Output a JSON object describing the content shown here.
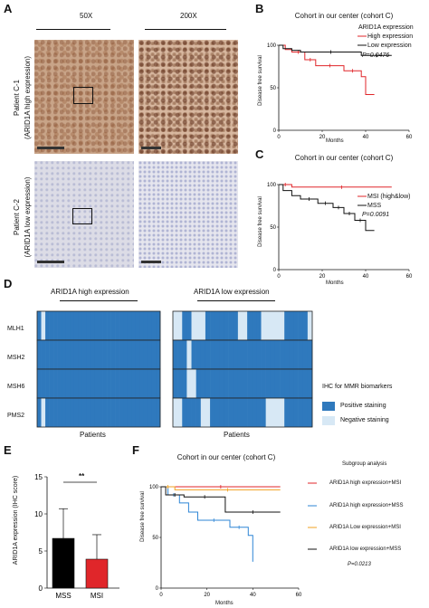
{
  "panelA": {
    "label": "A",
    "col_50x": "50X",
    "col_200x": "200X",
    "row1_title": "Patient C-1",
    "row1_sub": "(ARID1A high expression)",
    "row2_title": "Patient C-2",
    "row2_sub": "(ARID1A low expression)"
  },
  "panelB": {
    "label": "B",
    "title": "Cohort in our center (cohort C)",
    "legend_title": "ARID1A expression",
    "legend_high": "High expression",
    "legend_low": "Low expression",
    "pvalue": "P=0.0476",
    "ylabel": "Disease free survival",
    "xlabel": "Months",
    "colors": {
      "high": "#e0262a",
      "low": "#111111"
    }
  },
  "panelC": {
    "label": "C",
    "title": "Cohort in our center (cohort C)",
    "legend_msi": "MSI (high&low)",
    "legend_mss": "MSS",
    "pvalue": "P=0.0091",
    "ylabel": "Disease free survival",
    "xlabel": "Months",
    "colors": {
      "msi": "#e0262a",
      "mss": "#111111"
    }
  },
  "panelD": {
    "label": "D",
    "group_high": "ARID1A high expression",
    "group_low": "ARID1A low expression",
    "markers": [
      "MLH1",
      "MSH2",
      "MSH6",
      "PMS2"
    ],
    "xlabel_left": "Patients",
    "xlabel_right": "Patients",
    "legend_title": "IHC for MMR biomarkers",
    "legend_pos": "Positive staining",
    "legend_neg": "Negative staining",
    "colors": {
      "positive": "#2f79bd",
      "negative": "#d7e8f5"
    }
  },
  "panelE": {
    "label": "E",
    "ylabel": "ARID1A expression (IHC score)",
    "significance": "**"
  },
  "panelF": {
    "label": "F",
    "title": "Cohort in our center (cohort C)",
    "legend_title": "Subgroup analysis",
    "legend": [
      "ARID1A high expression+MSI",
      "ARID1A high expression+MSS",
      "ARID1A Low expression+MSI",
      "ARID1A low expression+MSS"
    ],
    "pvalue": "P=0.0213",
    "ylabel": "Disease free survival",
    "xlabel": "Months",
    "colors": [
      "#e0262a",
      "#2e86d6",
      "#f0a020",
      "#111111"
    ]
  },
  "chart_data": [
    {
      "panel": "B",
      "type": "line",
      "title": "Cohort in our center (cohort C)",
      "xlabel": "Months",
      "ylabel": "Disease free survival",
      "xlim": [
        0,
        60
      ],
      "ylim": [
        0,
        100
      ],
      "xticks": [
        0,
        20,
        40,
        60
      ],
      "yticks": [
        0,
        50,
        100
      ],
      "series": [
        {
          "name": "High expression",
          "step": true,
          "points": [
            [
              0,
              100
            ],
            [
              3,
              100
            ],
            [
              3,
              95
            ],
            [
              6,
              95
            ],
            [
              6,
              92
            ],
            [
              12,
              92
            ],
            [
              12,
              83
            ],
            [
              17,
              83
            ],
            [
              17,
              76
            ],
            [
              30,
              76
            ],
            [
              30,
              70
            ],
            [
              38,
              70
            ],
            [
              38,
              63
            ],
            [
              40,
              63
            ],
            [
              40,
              42
            ],
            [
              44,
              42
            ]
          ]
        },
        {
          "name": "Low expression",
          "step": true,
          "points": [
            [
              0,
              100
            ],
            [
              2,
              100
            ],
            [
              2,
              96
            ],
            [
              6,
              96
            ],
            [
              6,
              94
            ],
            [
              10,
              94
            ],
            [
              10,
              92
            ],
            [
              38,
              92
            ],
            [
              38,
              88
            ],
            [
              52,
              88
            ]
          ]
        }
      ]
    },
    {
      "panel": "C",
      "type": "line",
      "title": "Cohort in our center (cohort C)",
      "xlabel": "Months",
      "ylabel": "Disease free survival",
      "xlim": [
        0,
        60
      ],
      "ylim": [
        0,
        100
      ],
      "xticks": [
        0,
        20,
        40,
        60
      ],
      "yticks": [
        0,
        50,
        100
      ],
      "series": [
        {
          "name": "MSI (high&low)",
          "step": true,
          "points": [
            [
              0,
              100
            ],
            [
              6,
              100
            ],
            [
              6,
              97
            ],
            [
              52,
              97
            ]
          ]
        },
        {
          "name": "MSS",
          "step": true,
          "points": [
            [
              0,
              100
            ],
            [
              2,
              100
            ],
            [
              2,
              93
            ],
            [
              6,
              93
            ],
            [
              6,
              87
            ],
            [
              10,
              87
            ],
            [
              10,
              83
            ],
            [
              18,
              83
            ],
            [
              18,
              78
            ],
            [
              25,
              78
            ],
            [
              25,
              73
            ],
            [
              30,
              73
            ],
            [
              30,
              66
            ],
            [
              35,
              66
            ],
            [
              35,
              58
            ],
            [
              40,
              58
            ],
            [
              40,
              46
            ],
            [
              44,
              46
            ]
          ]
        }
      ]
    },
    {
      "panel": "D",
      "type": "heatmap",
      "rows": [
        "MLH1",
        "MSH2",
        "MSH6",
        "PMS2"
      ],
      "values": {
        "positive": "Positive staining",
        "negative": "Negative staining"
      },
      "high_group": [
        [
          1,
          0,
          1,
          1,
          1,
          1,
          1,
          1,
          1,
          1,
          1,
          1,
          1,
          1,
          1,
          1,
          1,
          1,
          1,
          1,
          1,
          1,
          1,
          1,
          1,
          1,
          1,
          1,
          1,
          1
        ],
        [
          1,
          1,
          1,
          1,
          1,
          1,
          1,
          1,
          1,
          1,
          1,
          1,
          1,
          1,
          1,
          1,
          1,
          1,
          1,
          1,
          1,
          1,
          1,
          1,
          1,
          1,
          1,
          1,
          1,
          1
        ],
        [
          1,
          1,
          1,
          1,
          1,
          1,
          1,
          1,
          1,
          1,
          1,
          1,
          1,
          1,
          1,
          1,
          1,
          1,
          1,
          1,
          1,
          1,
          1,
          1,
          1,
          1,
          1,
          1,
          1,
          1
        ],
        [
          1,
          0,
          1,
          1,
          1,
          1,
          1,
          1,
          1,
          1,
          1,
          1,
          1,
          1,
          1,
          1,
          1,
          1,
          1,
          1,
          1,
          1,
          1,
          1,
          1,
          1,
          1,
          1,
          1,
          1
        ]
      ],
      "low_group": [
        [
          0,
          0,
          1,
          1,
          0,
          0,
          0,
          1,
          1,
          1,
          1,
          1,
          1,
          1,
          0,
          0,
          1,
          1,
          1,
          0,
          0,
          0,
          0,
          0,
          1,
          1,
          1,
          1,
          1,
          0
        ],
        [
          1,
          1,
          1,
          0,
          1,
          1,
          1,
          1,
          1,
          1,
          1,
          1,
          1,
          1,
          1,
          1,
          1,
          1,
          1,
          1,
          1,
          1,
          1,
          1,
          1,
          1,
          1,
          1,
          1,
          1
        ],
        [
          1,
          1,
          1,
          0,
          0,
          1,
          1,
          1,
          1,
          1,
          1,
          1,
          1,
          1,
          1,
          1,
          1,
          1,
          1,
          1,
          1,
          1,
          1,
          1,
          1,
          1,
          1,
          1,
          1,
          1
        ],
        [
          0,
          0,
          1,
          1,
          1,
          1,
          0,
          0,
          1,
          1,
          1,
          1,
          1,
          1,
          1,
          1,
          1,
          1,
          1,
          1,
          0,
          0,
          0,
          0,
          1,
          1,
          1,
          1,
          1,
          1
        ]
      ]
    },
    {
      "panel": "E",
      "type": "bar",
      "categories": [
        "MSS",
        "MSI"
      ],
      "values": [
        6.7,
        3.9
      ],
      "errors": [
        4.0,
        3.3
      ],
      "ylabel": "ARID1A expression (IHC score)",
      "ylim": [
        0,
        15
      ],
      "yticks": [
        0,
        5,
        10,
        15
      ],
      "colors": [
        "#000000",
        "#e0262a"
      ]
    },
    {
      "panel": "F",
      "type": "line",
      "title": "Cohort in our center (cohort C)",
      "xlabel": "Months",
      "ylabel": "Disease free survival",
      "xlim": [
        0,
        60
      ],
      "ylim": [
        0,
        100
      ],
      "xticks": [
        0,
        20,
        40,
        60
      ],
      "yticks": [
        0,
        50,
        100
      ],
      "series": [
        {
          "name": "ARID1A high expression+MSI",
          "step": true,
          "points": [
            [
              0,
              100
            ],
            [
              52,
              100
            ]
          ]
        },
        {
          "name": "ARID1A high expression+MSS",
          "step": true,
          "points": [
            [
              0,
              100
            ],
            [
              3,
              100
            ],
            [
              3,
              92
            ],
            [
              8,
              92
            ],
            [
              8,
              84
            ],
            [
              12,
              84
            ],
            [
              12,
              75
            ],
            [
              16,
              75
            ],
            [
              16,
              67
            ],
            [
              30,
              67
            ],
            [
              30,
              60
            ],
            [
              38,
              60
            ],
            [
              38,
              52
            ],
            [
              40,
              52
            ],
            [
              40,
              26
            ]
          ]
        },
        {
          "name": "ARID1A Low expression+MSI",
          "step": true,
          "points": [
            [
              0,
              100
            ],
            [
              6,
              100
            ],
            [
              6,
              97
            ],
            [
              52,
              97
            ]
          ]
        },
        {
          "name": "ARID1A low expression+MSS",
          "step": true,
          "points": [
            [
              0,
              100
            ],
            [
              2,
              100
            ],
            [
              2,
              92
            ],
            [
              10,
              92
            ],
            [
              10,
              90
            ],
            [
              28,
              90
            ],
            [
              28,
              75
            ],
            [
              52,
              75
            ]
          ]
        }
      ]
    }
  ]
}
